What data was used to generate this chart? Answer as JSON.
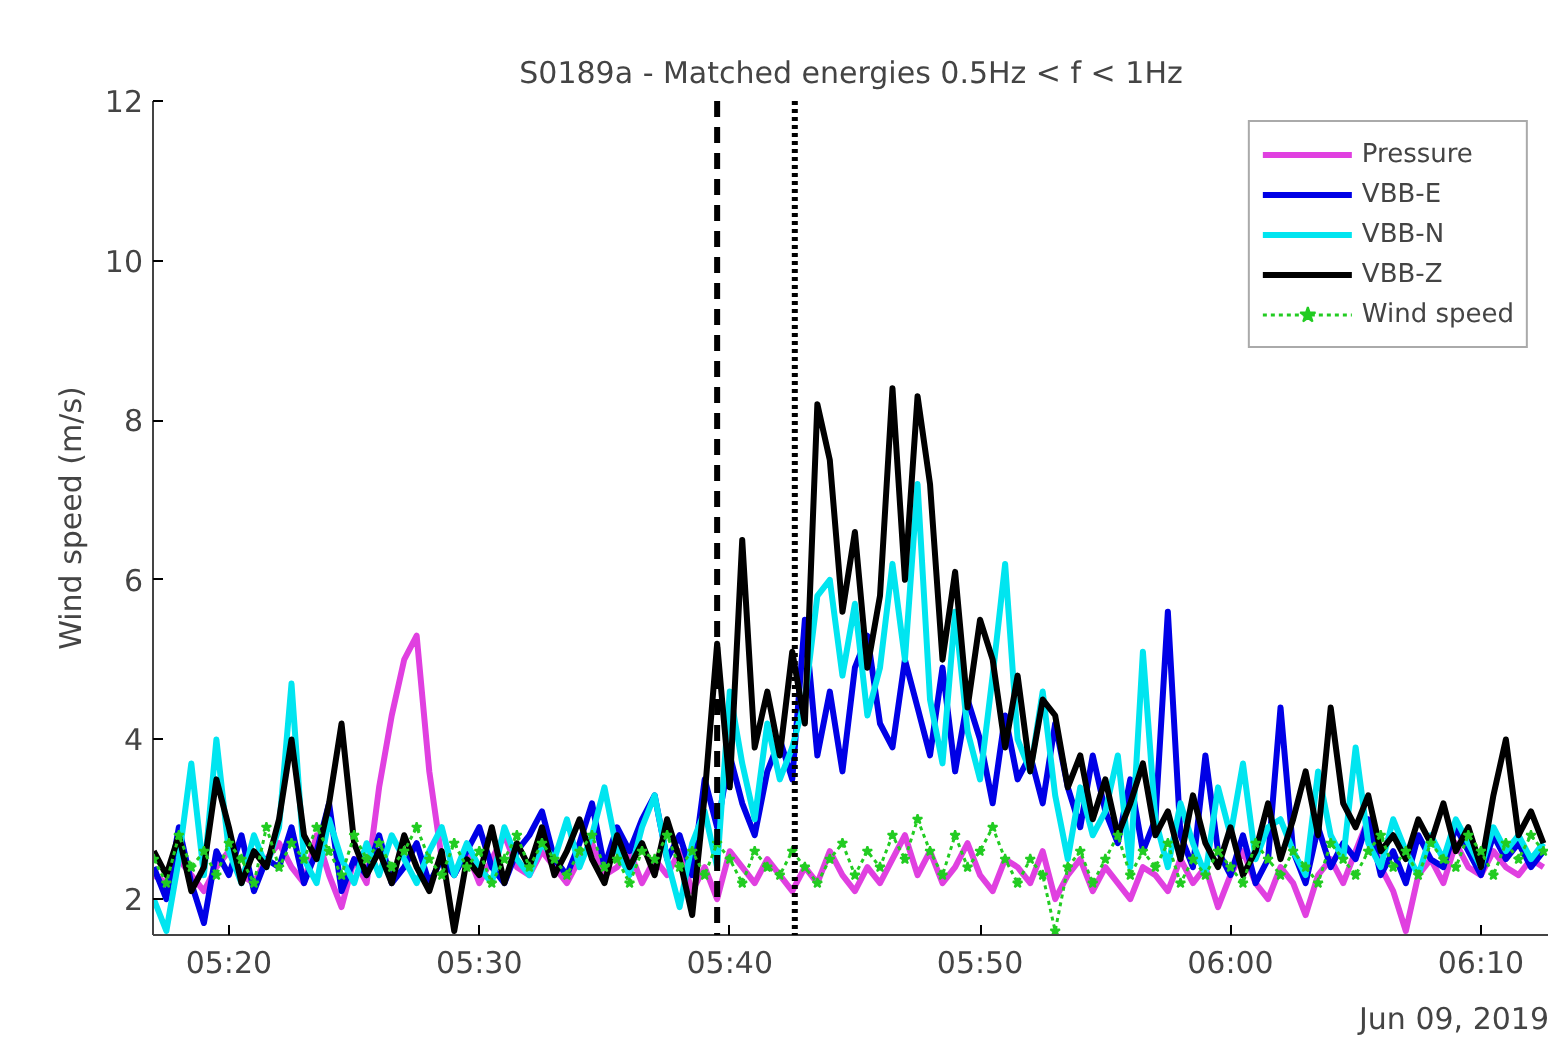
{
  "chart_data": {
    "type": "line",
    "title": "S0189a - Matched energies 0.5Hz < f < 1Hz",
    "ylabel": "Wind speed (m/s)",
    "annotations": [
      "Jun 09, 2019"
    ],
    "xlim": [
      5.2828,
      6.212
    ],
    "ylim": [
      1.55,
      12
    ],
    "xticks": [
      {
        "value": 5.3333,
        "label": "05:20"
      },
      {
        "value": 5.5,
        "label": "05:30"
      },
      {
        "value": 5.6667,
        "label": "05:40"
      },
      {
        "value": 5.8333,
        "label": "05:50"
      },
      {
        "value": 6.0,
        "label": "06:00"
      },
      {
        "value": 6.1667,
        "label": "06:10"
      }
    ],
    "yticks": [
      2,
      4,
      6,
      8,
      10,
      12
    ],
    "grid": false,
    "legend": "top right",
    "ref_lines": [
      {
        "axis": "x",
        "value": 5.6583,
        "label": null,
        "color": "#000000",
        "line_style": "dashed"
      },
      {
        "axis": "x",
        "value": 5.71,
        "label": null,
        "color": "#000000",
        "line_style": "dotted"
      }
    ],
    "x": [
      5.2833,
      5.2917,
      5.3,
      5.3083,
      5.3167,
      5.325,
      5.3333,
      5.3417,
      5.35,
      5.3583,
      5.3667,
      5.375,
      5.3833,
      5.3917,
      5.4,
      5.4083,
      5.4167,
      5.425,
      5.4333,
      5.4417,
      5.45,
      5.4583,
      5.4667,
      5.475,
      5.4833,
      5.4917,
      5.5,
      5.5083,
      5.5167,
      5.525,
      5.5333,
      5.5417,
      5.55,
      5.5583,
      5.5667,
      5.575,
      5.5833,
      5.5917,
      5.6,
      5.6083,
      5.6167,
      5.625,
      5.6333,
      5.6417,
      5.65,
      5.6583,
      5.6667,
      5.675,
      5.6833,
      5.6917,
      5.7,
      5.7083,
      5.7167,
      5.725,
      5.7333,
      5.7417,
      5.75,
      5.7583,
      5.7667,
      5.775,
      5.7833,
      5.7917,
      5.8,
      5.8083,
      5.8167,
      5.825,
      5.8333,
      5.8417,
      5.85,
      5.8583,
      5.8667,
      5.875,
      5.8833,
      5.8917,
      5.9,
      5.9083,
      5.9167,
      5.925,
      5.9333,
      5.9417,
      5.95,
      5.9583,
      5.9667,
      5.975,
      5.9833,
      5.9917,
      6.0,
      6.0083,
      6.0167,
      6.025,
      6.0333,
      6.0417,
      6.05,
      6.0583,
      6.0667,
      6.075,
      6.0833,
      6.0917,
      6.1,
      6.1083,
      6.1167,
      6.125,
      6.1333,
      6.1417,
      6.15,
      6.1583,
      6.1667,
      6.175,
      6.1833,
      6.1917,
      6.2,
      6.2083
    ],
    "series": [
      {
        "name": "Pressure",
        "color": "#e040e0",
        "values": [
          2.3,
          2.2,
          2.5,
          2.3,
          2.1,
          2.4,
          2.6,
          2.3,
          2.2,
          2.5,
          2.7,
          2.4,
          2.2,
          2.8,
          2.3,
          1.9,
          2.5,
          2.2,
          3.4,
          4.3,
          5.0,
          5.3,
          3.6,
          2.5,
          2.3,
          2.6,
          2.2,
          2.5,
          2.8,
          2.4,
          2.3,
          2.6,
          2.4,
          2.2,
          2.5,
          2.7,
          2.3,
          2.4,
          2.6,
          2.2,
          2.5,
          2.3,
          2.6,
          2.1,
          2.4,
          2.0,
          2.6,
          2.4,
          2.2,
          2.5,
          2.3,
          2.1,
          2.4,
          2.2,
          2.6,
          2.3,
          2.1,
          2.4,
          2.2,
          2.5,
          2.8,
          2.3,
          2.6,
          2.2,
          2.4,
          2.7,
          2.3,
          2.1,
          2.5,
          2.4,
          2.2,
          2.6,
          2.0,
          2.3,
          2.5,
          2.1,
          2.4,
          2.2,
          2.0,
          2.4,
          2.3,
          2.1,
          2.5,
          2.2,
          2.4,
          1.9,
          2.3,
          2.6,
          2.2,
          2.0,
          2.4,
          2.2,
          1.8,
          2.3,
          2.5,
          2.2,
          2.6,
          3.0,
          2.4,
          2.1,
          1.6,
          2.3,
          2.5,
          2.2,
          2.7,
          2.4,
          2.3,
          2.6,
          2.4,
          2.3,
          2.5,
          2.4
        ]
      },
      {
        "name": "VBB-E",
        "color": "#0000e6",
        "values": [
          2.4,
          2.0,
          2.9,
          2.2,
          1.7,
          2.6,
          2.3,
          2.8,
          2.1,
          2.5,
          2.4,
          2.9,
          2.2,
          2.6,
          3.2,
          2.1,
          2.5,
          2.3,
          2.8,
          2.2,
          2.4,
          2.7,
          2.2,
          2.5,
          2.3,
          2.6,
          2.9,
          2.4,
          2.2,
          2.6,
          2.8,
          3.1,
          2.5,
          2.3,
          2.7,
          3.2,
          2.4,
          2.9,
          2.6,
          3.0,
          3.3,
          2.5,
          2.8,
          2.3,
          3.5,
          2.9,
          3.8,
          3.2,
          2.8,
          3.6,
          4.0,
          3.5,
          5.5,
          3.8,
          4.6,
          3.6,
          4.9,
          5.3,
          4.2,
          3.9,
          5.0,
          4.4,
          3.8,
          4.9,
          3.6,
          4.5,
          4.0,
          3.2,
          4.3,
          3.5,
          3.8,
          3.2,
          4.2,
          3.4,
          2.9,
          3.8,
          3.1,
          2.7,
          3.5,
          2.6,
          3.0,
          5.6,
          2.8,
          2.4,
          3.8,
          2.6,
          2.3,
          2.8,
          2.2,
          2.5,
          4.4,
          2.6,
          2.2,
          2.9,
          2.4,
          2.7,
          2.5,
          3.0,
          2.3,
          2.6,
          2.2,
          2.8,
          2.5,
          2.4,
          2.9,
          2.6,
          2.3,
          2.8,
          2.5,
          2.7,
          2.4,
          2.6
        ]
      },
      {
        "name": "VBB-N",
        "color": "#00e5f0",
        "values": [
          2.0,
          1.6,
          2.5,
          3.7,
          2.3,
          4.0,
          2.6,
          2.2,
          2.8,
          2.4,
          2.9,
          4.7,
          2.5,
          2.2,
          3.0,
          2.5,
          2.2,
          2.7,
          2.3,
          2.8,
          2.5,
          2.2,
          2.6,
          2.9,
          2.3,
          2.7,
          2.4,
          2.2,
          2.9,
          2.5,
          2.3,
          2.7,
          2.5,
          3.0,
          2.4,
          2.8,
          3.4,
          2.6,
          2.3,
          2.9,
          3.3,
          2.5,
          1.9,
          2.7,
          3.1,
          2.4,
          4.6,
          3.7,
          3.0,
          4.2,
          3.5,
          3.9,
          4.5,
          5.8,
          6.0,
          4.8,
          5.7,
          4.3,
          4.9,
          6.2,
          5.0,
          7.2,
          4.5,
          3.7,
          5.6,
          4.1,
          3.5,
          4.8,
          6.2,
          4.0,
          3.6,
          4.6,
          3.3,
          2.5,
          3.4,
          2.8,
          3.1,
          3.8,
          2.4,
          5.1,
          3.0,
          2.4,
          3.2,
          2.7,
          2.3,
          3.4,
          2.8,
          3.7,
          2.5,
          2.9,
          3.0,
          2.6,
          2.3,
          3.6,
          2.8,
          2.5,
          3.9,
          2.7,
          2.4,
          3.0,
          2.6,
          2.3,
          2.8,
          2.5,
          3.0,
          2.7,
          2.4,
          2.9,
          2.6,
          2.8,
          2.5,
          2.7
        ]
      },
      {
        "name": "VBB-Z",
        "color": "#000000",
        "values": [
          2.6,
          2.3,
          2.8,
          2.1,
          2.4,
          3.5,
          2.9,
          2.2,
          2.6,
          2.4,
          3.0,
          4.0,
          2.8,
          2.5,
          3.2,
          4.2,
          2.7,
          2.3,
          2.6,
          2.2,
          2.8,
          2.4,
          2.1,
          2.6,
          1.6,
          2.5,
          2.3,
          2.9,
          2.2,
          2.7,
          2.4,
          2.9,
          2.3,
          2.6,
          3.0,
          2.5,
          2.2,
          2.8,
          2.4,
          2.7,
          2.3,
          3.0,
          2.5,
          1.8,
          3.3,
          5.2,
          3.4,
          6.5,
          3.9,
          4.6,
          3.8,
          5.1,
          4.2,
          8.2,
          7.5,
          5.6,
          6.6,
          4.9,
          5.8,
          8.4,
          6.0,
          8.3,
          7.2,
          5.0,
          6.1,
          4.4,
          5.5,
          5.0,
          3.9,
          4.8,
          3.6,
          4.5,
          4.3,
          3.4,
          3.8,
          3.0,
          3.5,
          2.8,
          3.2,
          3.7,
          2.8,
          3.1,
          2.5,
          3.3,
          2.7,
          2.4,
          2.9,
          2.3,
          2.6,
          3.2,
          2.5,
          3.0,
          3.6,
          2.8,
          4.4,
          3.2,
          2.9,
          3.3,
          2.6,
          2.8,
          2.5,
          3.0,
          2.7,
          3.2,
          2.6,
          2.9,
          2.4,
          3.3,
          4.0,
          2.8,
          3.1,
          2.7
        ]
      },
      {
        "name": "Wind speed",
        "color": "#22cc22",
        "line_style": "dotted",
        "marker": "star",
        "values": [
          2.5,
          2.2,
          2.8,
          2.4,
          2.6,
          2.3,
          2.7,
          2.5,
          2.2,
          2.9,
          2.4,
          2.7,
          2.5,
          2.9,
          2.6,
          2.3,
          2.8,
          2.5,
          2.7,
          2.4,
          2.6,
          2.9,
          2.5,
          2.3,
          2.7,
          2.4,
          2.6,
          2.2,
          2.5,
          2.8,
          2.4,
          2.7,
          2.5,
          2.3,
          2.6,
          2.8,
          2.4,
          2.5,
          2.2,
          2.6,
          2.5,
          2.8,
          2.4,
          2.6,
          2.3,
          2.7,
          2.5,
          2.2,
          2.6,
          2.4,
          2.3,
          2.6,
          2.4,
          2.2,
          2.5,
          2.7,
          2.3,
          2.6,
          2.4,
          2.8,
          2.5,
          3.0,
          2.6,
          2.3,
          2.8,
          2.4,
          2.6,
          2.9,
          2.5,
          2.2,
          2.5,
          2.3,
          1.6,
          2.4,
          2.6,
          2.2,
          2.5,
          2.8,
          2.3,
          2.6,
          2.4,
          2.7,
          2.2,
          2.5,
          2.3,
          2.6,
          2.4,
          2.2,
          2.7,
          2.5,
          2.3,
          2.6,
          2.4,
          2.2,
          2.7,
          2.5,
          2.3,
          2.6,
          2.8,
          2.4,
          2.6,
          2.3,
          2.7,
          2.5,
          2.4,
          2.8,
          2.6,
          2.3,
          2.7,
          2.5,
          2.8,
          2.6
        ]
      }
    ]
  }
}
